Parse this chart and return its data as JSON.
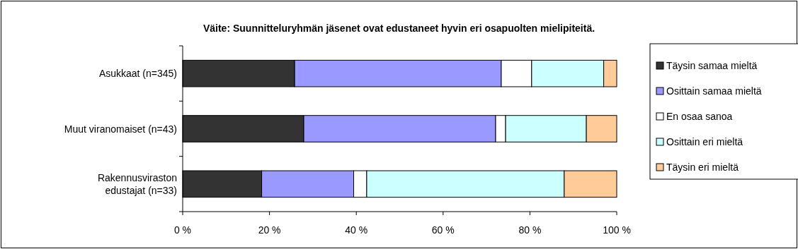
{
  "chart_data": {
    "type": "bar",
    "orientation": "horizontal",
    "stacked": true,
    "title": "Väite: Suunnitteluryhmän jäsenet ovat edustaneet hyvin eri osapuolten mielipiteitä.",
    "categories": [
      "Asukkaat (n=345)",
      "Muut viranomaiset (n=43)",
      "Rakennusviraston edustajat (n=33)"
    ],
    "series": [
      {
        "name": "Täysin samaa mieltä",
        "color": "#333333",
        "values": [
          25.8,
          27.9,
          18.2
        ]
      },
      {
        "name": "Osittain samaa mieltä",
        "color": "#9999ff",
        "values": [
          47.6,
          44.2,
          21.2
        ]
      },
      {
        "name": "En osaa sanoa",
        "color": "#ffffff",
        "values": [
          7.0,
          2.3,
          3.0
        ]
      },
      {
        "name": "Osittain eri mieltä",
        "color": "#ccffff",
        "values": [
          16.6,
          18.6,
          45.5
        ]
      },
      {
        "name": "Täysin eri mieltä",
        "color": "#ffcc99",
        "values": [
          3.0,
          7.0,
          12.1
        ]
      }
    ],
    "xlim": [
      0,
      100
    ],
    "xticks": [
      {
        "value": 0,
        "label": "0 %"
      },
      {
        "value": 20,
        "label": "20 %"
      },
      {
        "value": 40,
        "label": "40 %"
      },
      {
        "value": 60,
        "label": "60 %"
      },
      {
        "value": 80,
        "label": "80 %"
      },
      {
        "value": 100,
        "label": "100 %"
      }
    ],
    "grid": false,
    "legend": "right"
  }
}
